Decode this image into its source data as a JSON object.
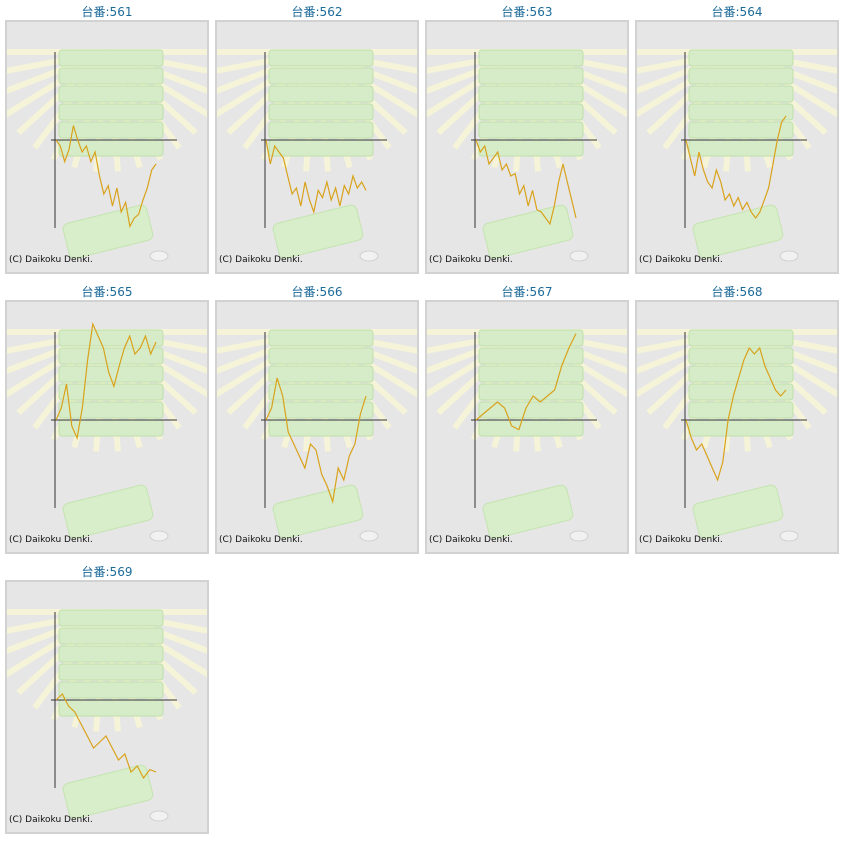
{
  "colors": {
    "title": "#1c6a9a",
    "line": "#d9a21b",
    "axis": "#333333",
    "panel": "#e6e6e6",
    "border": "#d2d2d2"
  },
  "copyright": "(C) Daikoku Denki.",
  "charts": [
    {
      "title": "台番:561"
    },
    {
      "title": "台番:562"
    },
    {
      "title": "台番:563"
    },
    {
      "title": "台番:564"
    },
    {
      "title": "台番:565"
    },
    {
      "title": "台番:566"
    },
    {
      "title": "台番:567"
    },
    {
      "title": "台番:568"
    },
    {
      "title": "台番:569"
    }
  ],
  "chart_data": [
    {
      "type": "line",
      "title": "台番:561",
      "values": [
        0,
        -5,
        -18,
        -8,
        12,
        0,
        -10,
        -5,
        -18,
        -10,
        -30,
        -45,
        -38,
        -55,
        -40,
        -60,
        -52,
        -72,
        -65,
        -62,
        -50,
        -40,
        -25,
        -20
      ]
    },
    {
      "type": "line",
      "title": "台番:562",
      "values": [
        0,
        -20,
        -5,
        -10,
        -15,
        -30,
        -45,
        -40,
        -55,
        -35,
        -50,
        -60,
        -42,
        -48,
        -35,
        -50,
        -40,
        -55,
        -38,
        -45,
        -30,
        -40,
        -35,
        -42
      ]
    },
    {
      "type": "line",
      "title": "台番:563",
      "values": [
        0,
        -10,
        -5,
        -20,
        -15,
        -10,
        -25,
        -20,
        -30,
        -28,
        -45,
        -38,
        -55,
        -42,
        -58,
        -60,
        -65,
        -70,
        -55,
        -35,
        -20,
        -35,
        -50,
        -65
      ]
    },
    {
      "type": "line",
      "title": "台番:564",
      "values": [
        0,
        -15,
        -30,
        -10,
        -25,
        -35,
        -40,
        -25,
        -35,
        -50,
        -45,
        -55,
        -48,
        -58,
        -52,
        -60,
        -65,
        -60,
        -50,
        -40,
        -20,
        0,
        15,
        20
      ]
    },
    {
      "type": "line",
      "title": "台番:565",
      "values": [
        0,
        10,
        30,
        -5,
        -15,
        10,
        50,
        80,
        70,
        60,
        40,
        28,
        45,
        60,
        70,
        55,
        60,
        70,
        55,
        65
      ]
    },
    {
      "type": "line",
      "title": "台番:566",
      "values": [
        0,
        10,
        35,
        20,
        -10,
        -20,
        -30,
        -40,
        -20,
        -25,
        -45,
        -55,
        -68,
        -40,
        -50,
        -30,
        -20,
        5,
        20
      ]
    },
    {
      "type": "line",
      "title": "台番:567",
      "values": [
        0,
        5,
        10,
        15,
        10,
        -5,
        -8,
        10,
        20,
        15,
        20,
        25,
        45,
        60,
        72
      ]
    },
    {
      "type": "line",
      "title": "台番:568",
      "values": [
        0,
        -15,
        -25,
        -20,
        -30,
        -40,
        -50,
        -35,
        0,
        20,
        35,
        50,
        60,
        55,
        60,
        45,
        35,
        25,
        20,
        25
      ]
    },
    {
      "type": "line",
      "title": "台番:569",
      "values": [
        0,
        5,
        -5,
        -10,
        -20,
        -30,
        -40,
        -35,
        -30,
        -40,
        -50,
        -45,
        -60,
        -55,
        -65,
        -58,
        -60
      ]
    }
  ]
}
